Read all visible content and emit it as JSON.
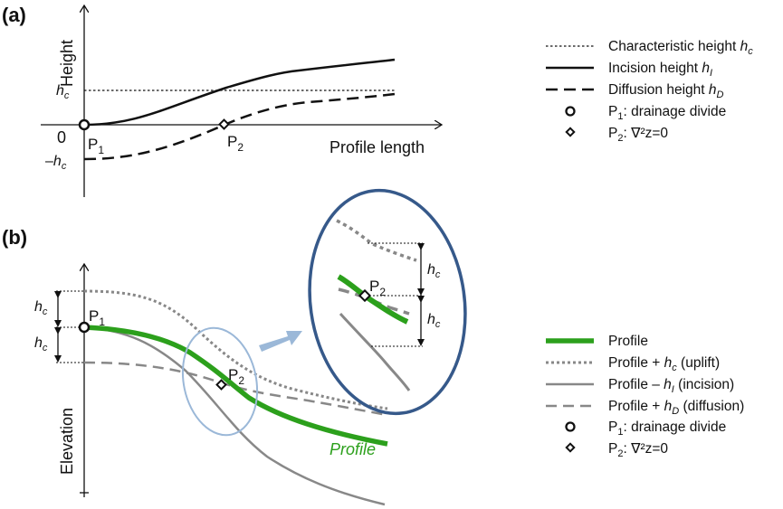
{
  "panel_a": {
    "label": "(a)",
    "y_axis_label": "Height",
    "x_axis_label": "Profile length",
    "tick_hc": "h",
    "tick_hc_sub": "c",
    "tick_zero": "0",
    "tick_neg_prefix": "–",
    "tick_neg_hc": "h",
    "tick_neg_hc_sub": "c",
    "p1_label": "P",
    "p1_sub": "1",
    "p2_label": "P",
    "p2_sub": "2",
    "legend": [
      {
        "text": "Characteristic height ",
        "italic": "h",
        "sub": "c",
        "style": "dotted"
      },
      {
        "text": "Incision height ",
        "italic": "h",
        "sub": "I",
        "style": "solid"
      },
      {
        "text": "Diffusion height ",
        "italic": "h",
        "sub": "D",
        "style": "dashed"
      },
      {
        "text": "P",
        "sub_plain": "1",
        "tail": ": drainage divide",
        "style": "circle"
      },
      {
        "text": "P",
        "sub_plain": "2",
        "tail": ": ∇²z=0",
        "style": "diamond"
      }
    ]
  },
  "panel_b": {
    "label": "(b)",
    "y_axis_label": "Elevation",
    "profile_label": "Profile",
    "hc_italic": "h",
    "hc_sub": "c",
    "p1_label": "P",
    "p1_sub": "1",
    "p2_label": "P",
    "p2_sub": "2",
    "inset_hc_italic": "h",
    "inset_hc_sub": "c",
    "legend": [
      {
        "text": "Profile",
        "style": "green"
      },
      {
        "text": "Profile + ",
        "italic": "h",
        "sub": "c",
        "tail": " (uplift)",
        "style": "gray-dotted"
      },
      {
        "text": "Profile – ",
        "italic": "h",
        "sub": "I",
        "tail": " (incision)",
        "style": "gray-solid"
      },
      {
        "text": "Profile + ",
        "italic": "h",
        "sub": "D",
        "tail": " (diffusion)",
        "style": "gray-dashed"
      },
      {
        "text": "P",
        "sub_plain": "1",
        "tail": ": drainage divide",
        "style": "circle"
      },
      {
        "text": "P",
        "sub_plain": "2",
        "tail": ": ∇²z=0",
        "style": "diamond"
      }
    ]
  },
  "colors": {
    "profile_green": "#2ca01c",
    "gray_line": "#888888",
    "inset_ellipse": "#36598a",
    "zoom_ellipse": "#9bb8d8",
    "arrow_blue": "#9bb8d8"
  }
}
